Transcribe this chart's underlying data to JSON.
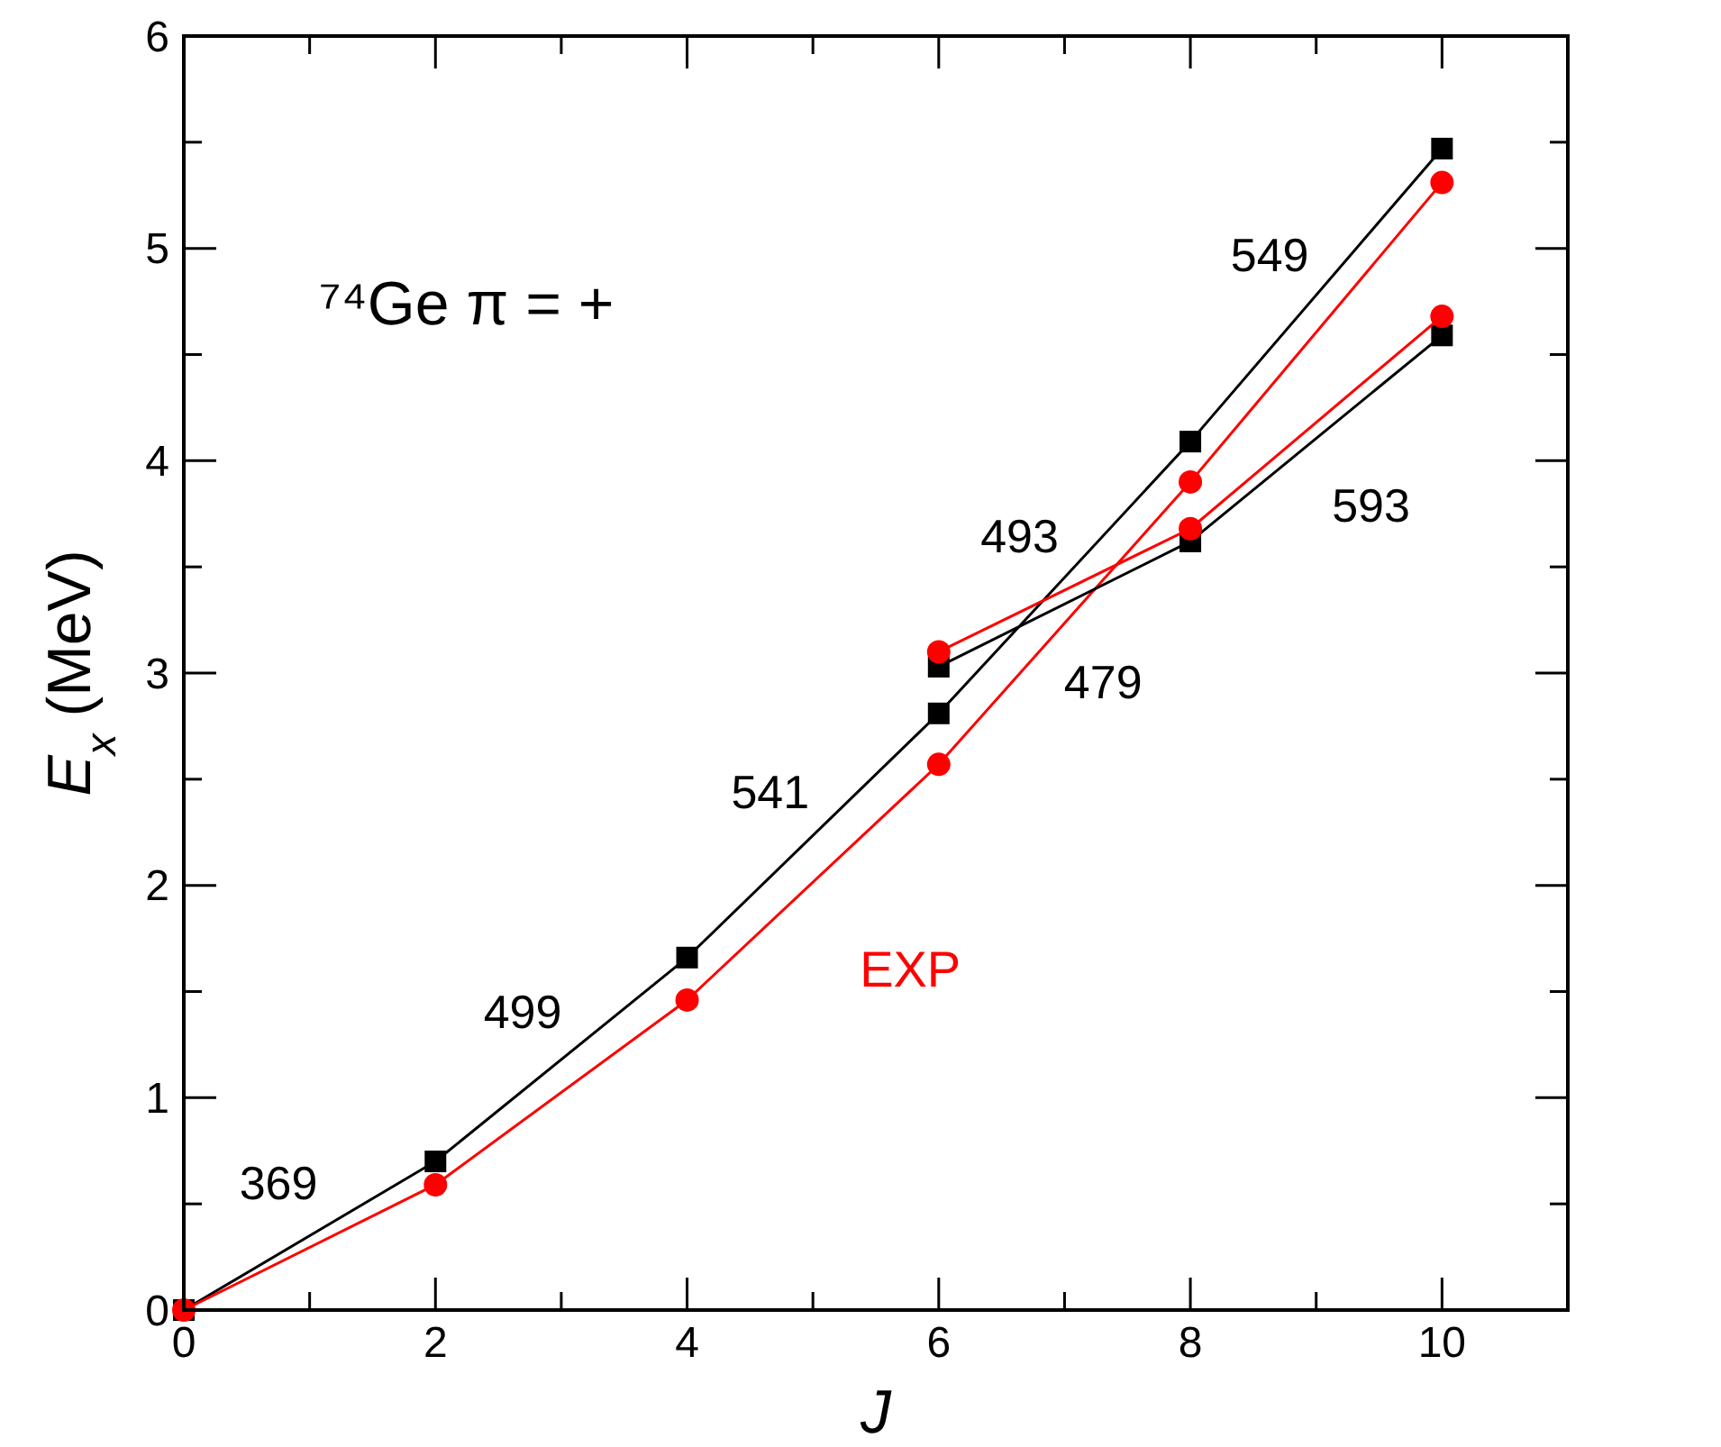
{
  "chart_data": {
    "type": "line",
    "xlabel": "J",
    "ylabel": "E$_{x}$ (MeV)",
    "xlim": [
      0,
      11
    ],
    "xticks": [
      0,
      {
        "value": 1,
        "label": null
      },
      2,
      {
        "value": 3,
        "label": null
      },
      4,
      {
        "value": 5,
        "label": null
      },
      6,
      {
        "value": 7,
        "label": null
      },
      8,
      {
        "value": 9,
        "label": null
      },
      10
    ],
    "ylim": [
      0,
      6
    ],
    "yticks": [
      0,
      {
        "value": 0.5,
        "label": null
      },
      1,
      {
        "value": 1.5,
        "label": null
      },
      2,
      {
        "value": 2.5,
        "label": null
      },
      3,
      {
        "value": 3.5,
        "label": null
      },
      4,
      {
        "value": 4.5,
        "label": null
      },
      5,
      {
        "value": 5.5,
        "label": null
      },
      6
    ],
    "grid": false,
    "line_style": "solid",
    "series": [
      {
        "color": "#000000",
        "marker": "square",
        "x": [
          0,
          2,
          4,
          6,
          8,
          10
        ],
        "values": [
          0,
          0.7,
          1.66,
          2.81,
          4.09,
          5.47
        ]
      },
      {
        "name": "EXP",
        "color": "#ff0000",
        "marker": "circle",
        "x": [
          0,
          2,
          4,
          6,
          8,
          10
        ],
        "values": [
          0,
          0.59,
          1.46,
          2.57,
          3.9,
          5.31
        ]
      },
      {
        "color": "#000000",
        "marker": "square",
        "x": [
          6,
          8,
          10
        ],
        "values": [
          3.03,
          3.62,
          4.59
        ]
      },
      {
        "color": "#ff0000",
        "marker": "circle",
        "x": [
          6,
          8,
          10
        ],
        "values": [
          3.1,
          3.68,
          4.68
        ]
      }
    ],
    "annotations": [
      "⁷⁴Ge  π = +",
      "369",
      "499",
      "541",
      "493",
      "549",
      "479",
      "593"
    ]
  }
}
